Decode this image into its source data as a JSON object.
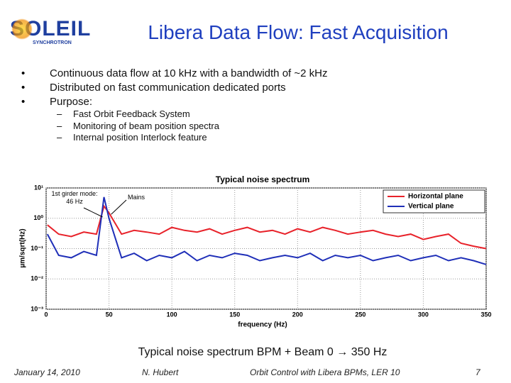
{
  "logo": {
    "name": "SOLEIL",
    "subtitle": "SYNCHROTRON"
  },
  "header": {
    "title": "Libera Data Flow: Fast Acquisition"
  },
  "bullets": [
    "Continuous data flow at 10 kHz with a bandwidth of ~2 kHz",
    "Distributed on fast communication dedicated ports",
    "Purpose:"
  ],
  "sub_bullets": [
    "Fast Orbit Feedback System",
    "Monitoring of beam position spectra",
    "Internal position Interlock feature"
  ],
  "chart_data": {
    "type": "line",
    "title": "Typical noise spectrum",
    "xlabel": "frequency (Hz)",
    "ylabel": "µm/sqrt(Hz)",
    "x": [
      1,
      10,
      20,
      30,
      40,
      46,
      50,
      60,
      70,
      80,
      90,
      100,
      110,
      120,
      130,
      140,
      150,
      160,
      170,
      180,
      190,
      200,
      210,
      220,
      230,
      240,
      250,
      260,
      270,
      280,
      290,
      300,
      310,
      320,
      330,
      340,
      350
    ],
    "series": [
      {
        "name": "Horizontal plane",
        "color": "#e8222a",
        "values": [
          0.6,
          0.3,
          0.25,
          0.35,
          0.3,
          2.5,
          1.5,
          0.3,
          0.4,
          0.35,
          0.3,
          0.5,
          0.4,
          0.35,
          0.45,
          0.3,
          0.4,
          0.5,
          0.35,
          0.4,
          0.3,
          0.45,
          0.35,
          0.5,
          0.4,
          0.3,
          0.35,
          0.4,
          0.3,
          0.25,
          0.3,
          0.2,
          0.25,
          0.3,
          0.15,
          0.12,
          0.1
        ]
      },
      {
        "name": "Vertical plane",
        "color": "#1f2fb8",
        "values": [
          0.3,
          0.06,
          0.05,
          0.08,
          0.06,
          5,
          1,
          0.05,
          0.07,
          0.04,
          0.06,
          0.05,
          0.08,
          0.04,
          0.06,
          0.05,
          0.07,
          0.06,
          0.04,
          0.05,
          0.06,
          0.05,
          0.07,
          0.04,
          0.06,
          0.05,
          0.06,
          0.04,
          0.05,
          0.06,
          0.04,
          0.05,
          0.06,
          0.04,
          0.05,
          0.04,
          0.03
        ]
      }
    ],
    "xlim": [
      0,
      350
    ],
    "xticks": [
      0,
      50,
      100,
      150,
      200,
      250,
      300,
      350
    ],
    "ylim": [
      0.001,
      10
    ],
    "yscale": "log",
    "yticks": [
      {
        "value": 0.001,
        "label": "10⁻³"
      },
      {
        "value": 0.01,
        "label": "10⁻²"
      },
      {
        "value": 0.1,
        "label": "10⁻¹"
      },
      {
        "value": 1,
        "label": "10⁰"
      },
      {
        "value": 10,
        "label": "10¹"
      }
    ],
    "grid": true,
    "legend": "upper right",
    "annotations": [
      "1st girder mode: 46 Hz",
      "Mains"
    ]
  },
  "caption": "Typical noise spectrum BPM + Beam 0 → 350 Hz",
  "footer": [
    "January 14, 2010",
    "N. Hubert",
    "Orbit Control with Libera BPMs, LER 10",
    "7"
  ]
}
